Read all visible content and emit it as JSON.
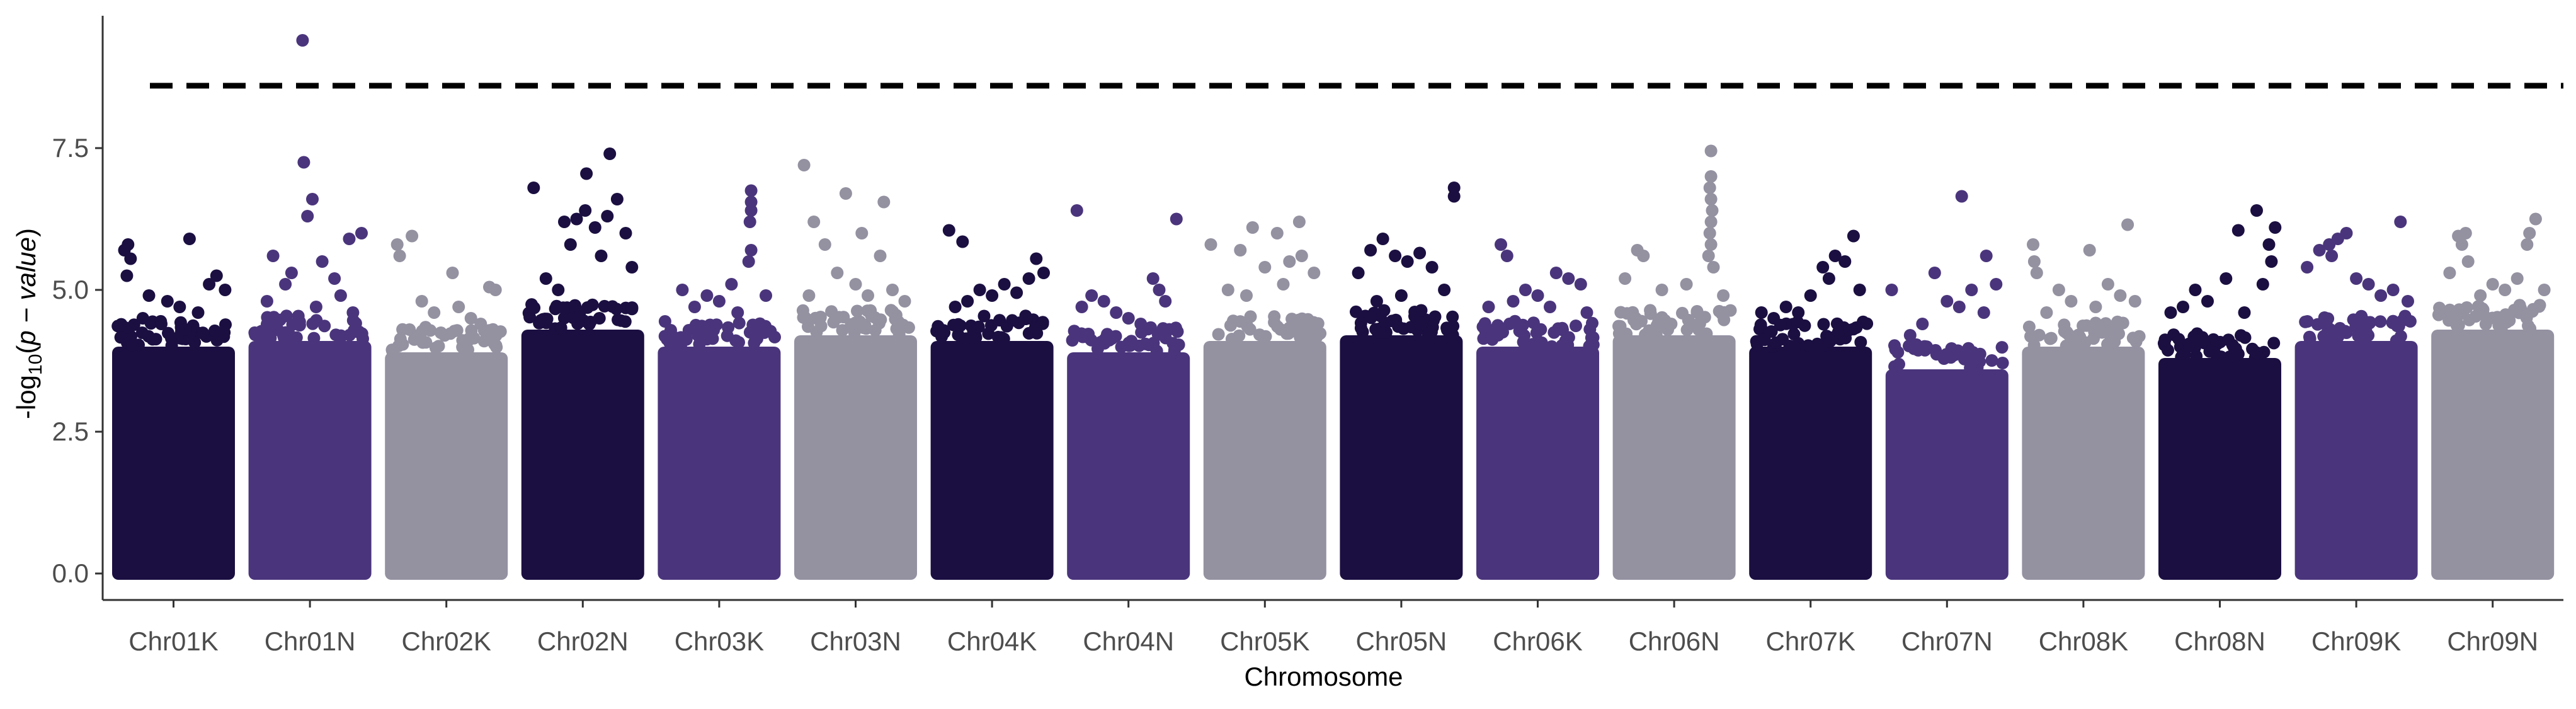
{
  "chart_data": {
    "type": "scatter",
    "subtype": "manhattan",
    "title": "",
    "xlabel": "Chromosome",
    "ylabel": "-log10(p - value)",
    "ylabel_parts": {
      "prefix": "-log",
      "subscript": "10",
      "open": "(",
      "italic": "p − value",
      "close": ")"
    },
    "ylim": [
      0,
      9.6
    ],
    "yticks": [
      0.0,
      2.5,
      5.0,
      7.5
    ],
    "ytick_labels": [
      "0.0",
      "2.5",
      "5.0",
      "7.5"
    ],
    "threshold": 8.6,
    "grid": false,
    "legend": "none",
    "colors": [
      "#1b0f41",
      "#4a357c",
      "#9491a1"
    ],
    "chromosomes": [
      {
        "name": "Chr01K",
        "color": "#1b0f41",
        "mass_top": 4.0,
        "top_points": [
          {
            "x": 0.13,
            "y": 5.8
          },
          {
            "x": 0.1,
            "y": 5.7
          },
          {
            "x": 0.15,
            "y": 5.55
          },
          {
            "x": 0.12,
            "y": 5.25
          },
          {
            "x": 0.63,
            "y": 5.9
          },
          {
            "x": 0.85,
            "y": 5.25
          },
          {
            "x": 0.79,
            "y": 5.1
          },
          {
            "x": 0.92,
            "y": 5.0
          },
          {
            "x": 0.3,
            "y": 4.9
          },
          {
            "x": 0.45,
            "y": 4.8
          },
          {
            "x": 0.55,
            "y": 4.7
          },
          {
            "x": 0.7,
            "y": 4.6
          },
          {
            "x": 0.25,
            "y": 4.5
          },
          {
            "x": 0.4,
            "y": 4.4
          },
          {
            "x": 0.6,
            "y": 4.3
          }
        ]
      },
      {
        "name": "Chr01N",
        "color": "#4a357c",
        "mass_top": 4.1,
        "top_points": [
          {
            "x": 0.44,
            "y": 9.4
          },
          {
            "x": 0.45,
            "y": 7.25
          },
          {
            "x": 0.52,
            "y": 6.6
          },
          {
            "x": 0.48,
            "y": 6.3
          },
          {
            "x": 0.92,
            "y": 6.0
          },
          {
            "x": 0.82,
            "y": 5.9
          },
          {
            "x": 0.2,
            "y": 5.6
          },
          {
            "x": 0.6,
            "y": 5.5
          },
          {
            "x": 0.35,
            "y": 5.3
          },
          {
            "x": 0.7,
            "y": 5.2
          },
          {
            "x": 0.3,
            "y": 5.1
          },
          {
            "x": 0.75,
            "y": 4.9
          },
          {
            "x": 0.15,
            "y": 4.8
          },
          {
            "x": 0.55,
            "y": 4.7
          },
          {
            "x": 0.85,
            "y": 4.6
          }
        ]
      },
      {
        "name": "Chr02K",
        "color": "#9491a1",
        "mass_top": 3.9,
        "top_points": [
          {
            "x": 0.22,
            "y": 5.95
          },
          {
            "x": 0.1,
            "y": 5.8
          },
          {
            "x": 0.12,
            "y": 5.6
          },
          {
            "x": 0.55,
            "y": 5.3
          },
          {
            "x": 0.85,
            "y": 5.05
          },
          {
            "x": 0.9,
            "y": 5.0
          },
          {
            "x": 0.3,
            "y": 4.8
          },
          {
            "x": 0.4,
            "y": 4.6
          },
          {
            "x": 0.6,
            "y": 4.7
          },
          {
            "x": 0.7,
            "y": 4.5
          },
          {
            "x": 0.78,
            "y": 4.4
          },
          {
            "x": 0.2,
            "y": 4.3
          }
        ]
      },
      {
        "name": "Chr02N",
        "color": "#1b0f41",
        "mass_top": 4.3,
        "top_points": [
          {
            "x": 0.1,
            "y": 6.8
          },
          {
            "x": 0.53,
            "y": 7.05
          },
          {
            "x": 0.72,
            "y": 7.4
          },
          {
            "x": 0.78,
            "y": 6.6
          },
          {
            "x": 0.7,
            "y": 6.3
          },
          {
            "x": 0.52,
            "y": 6.4
          },
          {
            "x": 0.35,
            "y": 6.2
          },
          {
            "x": 0.45,
            "y": 6.25
          },
          {
            "x": 0.6,
            "y": 6.1
          },
          {
            "x": 0.85,
            "y": 6.0
          },
          {
            "x": 0.4,
            "y": 5.8
          },
          {
            "x": 0.65,
            "y": 5.6
          },
          {
            "x": 0.9,
            "y": 5.4
          },
          {
            "x": 0.2,
            "y": 5.2
          },
          {
            "x": 0.3,
            "y": 5.0
          }
        ]
      },
      {
        "name": "Chr03K",
        "color": "#4a357c",
        "mass_top": 4.0,
        "top_points": [
          {
            "x": 0.76,
            "y": 6.75
          },
          {
            "x": 0.76,
            "y": 6.55
          },
          {
            "x": 0.76,
            "y": 6.4
          },
          {
            "x": 0.75,
            "y": 6.2
          },
          {
            "x": 0.76,
            "y": 5.7
          },
          {
            "x": 0.74,
            "y": 5.5
          },
          {
            "x": 0.6,
            "y": 5.1
          },
          {
            "x": 0.2,
            "y": 5.0
          },
          {
            "x": 0.4,
            "y": 4.9
          },
          {
            "x": 0.5,
            "y": 4.8
          },
          {
            "x": 0.3,
            "y": 4.7
          },
          {
            "x": 0.88,
            "y": 4.9
          },
          {
            "x": 0.65,
            "y": 4.6
          }
        ]
      },
      {
        "name": "Chr03N",
        "color": "#9491a1",
        "mass_top": 4.2,
        "top_points": [
          {
            "x": 0.08,
            "y": 7.2
          },
          {
            "x": 0.42,
            "y": 6.7
          },
          {
            "x": 0.73,
            "y": 6.55
          },
          {
            "x": 0.16,
            "y": 6.2
          },
          {
            "x": 0.55,
            "y": 6.0
          },
          {
            "x": 0.25,
            "y": 5.8
          },
          {
            "x": 0.7,
            "y": 5.6
          },
          {
            "x": 0.35,
            "y": 5.3
          },
          {
            "x": 0.5,
            "y": 5.1
          },
          {
            "x": 0.8,
            "y": 5.0
          },
          {
            "x": 0.6,
            "y": 4.9
          },
          {
            "x": 0.9,
            "y": 4.8
          },
          {
            "x": 0.12,
            "y": 4.9
          }
        ]
      },
      {
        "name": "Chr04K",
        "color": "#1b0f41",
        "mass_top": 4.1,
        "top_points": [
          {
            "x": 0.15,
            "y": 6.05
          },
          {
            "x": 0.26,
            "y": 5.85
          },
          {
            "x": 0.86,
            "y": 5.55
          },
          {
            "x": 0.4,
            "y": 5.0
          },
          {
            "x": 0.5,
            "y": 4.9
          },
          {
            "x": 0.6,
            "y": 5.1
          },
          {
            "x": 0.7,
            "y": 4.95
          },
          {
            "x": 0.8,
            "y": 5.2
          },
          {
            "x": 0.92,
            "y": 5.3
          },
          {
            "x": 0.3,
            "y": 4.8
          },
          {
            "x": 0.2,
            "y": 4.7
          }
        ]
      },
      {
        "name": "Chr04N",
        "color": "#4a357c",
        "mass_top": 3.9,
        "top_points": [
          {
            "x": 0.08,
            "y": 6.4
          },
          {
            "x": 0.89,
            "y": 6.25
          },
          {
            "x": 0.7,
            "y": 5.2
          },
          {
            "x": 0.2,
            "y": 4.9
          },
          {
            "x": 0.3,
            "y": 4.8
          },
          {
            "x": 0.75,
            "y": 5.0
          },
          {
            "x": 0.8,
            "y": 4.8
          },
          {
            "x": 0.5,
            "y": 4.5
          },
          {
            "x": 0.4,
            "y": 4.6
          },
          {
            "x": 0.6,
            "y": 4.4
          },
          {
            "x": 0.12,
            "y": 4.7
          }
        ]
      },
      {
        "name": "Chr05K",
        "color": "#9491a1",
        "mass_top": 4.1,
        "top_points": [
          {
            "x": 0.06,
            "y": 5.8
          },
          {
            "x": 0.78,
            "y": 6.2
          },
          {
            "x": 0.4,
            "y": 6.1
          },
          {
            "x": 0.6,
            "y": 6.0
          },
          {
            "x": 0.3,
            "y": 5.7
          },
          {
            "x": 0.7,
            "y": 5.5
          },
          {
            "x": 0.5,
            "y": 5.4
          },
          {
            "x": 0.8,
            "y": 5.6
          },
          {
            "x": 0.9,
            "y": 5.3
          },
          {
            "x": 0.2,
            "y": 5.0
          },
          {
            "x": 0.35,
            "y": 4.9
          },
          {
            "x": 0.65,
            "y": 5.1
          }
        ]
      },
      {
        "name": "Chr05N",
        "color": "#1b0f41",
        "mass_top": 4.2,
        "top_points": [
          {
            "x": 0.93,
            "y": 6.8
          },
          {
            "x": 0.93,
            "y": 6.65
          },
          {
            "x": 0.35,
            "y": 5.9
          },
          {
            "x": 0.25,
            "y": 5.7
          },
          {
            "x": 0.45,
            "y": 5.6
          },
          {
            "x": 0.65,
            "y": 5.65
          },
          {
            "x": 0.55,
            "y": 5.5
          },
          {
            "x": 0.75,
            "y": 5.4
          },
          {
            "x": 0.15,
            "y": 5.3
          },
          {
            "x": 0.85,
            "y": 5.0
          },
          {
            "x": 0.5,
            "y": 4.9
          },
          {
            "x": 0.3,
            "y": 4.8
          }
        ]
      },
      {
        "name": "Chr06K",
        "color": "#4a357c",
        "mass_top": 4.0,
        "top_points": [
          {
            "x": 0.2,
            "y": 5.8
          },
          {
            "x": 0.25,
            "y": 5.6
          },
          {
            "x": 0.65,
            "y": 5.3
          },
          {
            "x": 0.75,
            "y": 5.2
          },
          {
            "x": 0.85,
            "y": 5.1
          },
          {
            "x": 0.4,
            "y": 5.0
          },
          {
            "x": 0.5,
            "y": 4.9
          },
          {
            "x": 0.3,
            "y": 4.8
          },
          {
            "x": 0.6,
            "y": 4.7
          },
          {
            "x": 0.9,
            "y": 4.6
          },
          {
            "x": 0.1,
            "y": 4.7
          }
        ]
      },
      {
        "name": "Chr06N",
        "color": "#9491a1",
        "mass_top": 4.2,
        "top_points": [
          {
            "x": 0.8,
            "y": 7.45
          },
          {
            "x": 0.8,
            "y": 7.0
          },
          {
            "x": 0.79,
            "y": 6.8
          },
          {
            "x": 0.8,
            "y": 6.6
          },
          {
            "x": 0.81,
            "y": 6.4
          },
          {
            "x": 0.8,
            "y": 6.2
          },
          {
            "x": 0.79,
            "y": 6.0
          },
          {
            "x": 0.8,
            "y": 5.8
          },
          {
            "x": 0.78,
            "y": 5.6
          },
          {
            "x": 0.82,
            "y": 5.4
          },
          {
            "x": 0.2,
            "y": 5.7
          },
          {
            "x": 0.25,
            "y": 5.6
          },
          {
            "x": 0.1,
            "y": 5.2
          },
          {
            "x": 0.4,
            "y": 5.0
          },
          {
            "x": 0.6,
            "y": 5.1
          },
          {
            "x": 0.9,
            "y": 4.9
          }
        ]
      },
      {
        "name": "Chr07K",
        "color": "#1b0f41",
        "mass_top": 4.0,
        "top_points": [
          {
            "x": 0.85,
            "y": 5.95
          },
          {
            "x": 0.7,
            "y": 5.6
          },
          {
            "x": 0.78,
            "y": 5.5
          },
          {
            "x": 0.6,
            "y": 5.4
          },
          {
            "x": 0.65,
            "y": 5.2
          },
          {
            "x": 0.9,
            "y": 5.0
          },
          {
            "x": 0.5,
            "y": 4.9
          },
          {
            "x": 0.3,
            "y": 4.7
          },
          {
            "x": 0.4,
            "y": 4.6
          },
          {
            "x": 0.2,
            "y": 4.5
          },
          {
            "x": 0.1,
            "y": 4.6
          }
        ]
      },
      {
        "name": "Chr07N",
        "color": "#4a357c",
        "mass_top": 3.6,
        "top_points": [
          {
            "x": 0.62,
            "y": 6.65
          },
          {
            "x": 0.82,
            "y": 5.6
          },
          {
            "x": 0.4,
            "y": 5.3
          },
          {
            "x": 0.05,
            "y": 5.0
          },
          {
            "x": 0.7,
            "y": 5.0
          },
          {
            "x": 0.9,
            "y": 5.1
          },
          {
            "x": 0.5,
            "y": 4.8
          },
          {
            "x": 0.6,
            "y": 4.7
          },
          {
            "x": 0.3,
            "y": 4.4
          },
          {
            "x": 0.2,
            "y": 4.2
          },
          {
            "x": 0.8,
            "y": 4.6
          },
          {
            "x": 0.1,
            "y": 3.9
          }
        ]
      },
      {
        "name": "Chr08K",
        "color": "#9491a1",
        "mass_top": 4.0,
        "top_points": [
          {
            "x": 0.09,
            "y": 5.8
          },
          {
            "x": 0.86,
            "y": 6.15
          },
          {
            "x": 0.55,
            "y": 5.7
          },
          {
            "x": 0.1,
            "y": 5.5
          },
          {
            "x": 0.12,
            "y": 5.3
          },
          {
            "x": 0.3,
            "y": 5.0
          },
          {
            "x": 0.4,
            "y": 4.8
          },
          {
            "x": 0.7,
            "y": 5.1
          },
          {
            "x": 0.8,
            "y": 4.9
          },
          {
            "x": 0.6,
            "y": 4.7
          },
          {
            "x": 0.2,
            "y": 4.6
          },
          {
            "x": 0.92,
            "y": 4.8
          }
        ]
      },
      {
        "name": "Chr08N",
        "color": "#1b0f41",
        "mass_top": 3.8,
        "top_points": [
          {
            "x": 0.8,
            "y": 6.4
          },
          {
            "x": 0.65,
            "y": 6.05
          },
          {
            "x": 0.95,
            "y": 6.1
          },
          {
            "x": 0.9,
            "y": 5.8
          },
          {
            "x": 0.92,
            "y": 5.5
          },
          {
            "x": 0.55,
            "y": 5.2
          },
          {
            "x": 0.85,
            "y": 5.1
          },
          {
            "x": 0.3,
            "y": 5.0
          },
          {
            "x": 0.4,
            "y": 4.8
          },
          {
            "x": 0.2,
            "y": 4.7
          },
          {
            "x": 0.1,
            "y": 4.6
          },
          {
            "x": 0.7,
            "y": 4.6
          }
        ]
      },
      {
        "name": "Chr09K",
        "color": "#4a357c",
        "mass_top": 4.1,
        "top_points": [
          {
            "x": 0.86,
            "y": 6.2
          },
          {
            "x": 0.42,
            "y": 6.0
          },
          {
            "x": 0.35,
            "y": 5.9
          },
          {
            "x": 0.28,
            "y": 5.8
          },
          {
            "x": 0.2,
            "y": 5.7
          },
          {
            "x": 0.3,
            "y": 5.6
          },
          {
            "x": 0.1,
            "y": 5.4
          },
          {
            "x": 0.5,
            "y": 5.2
          },
          {
            "x": 0.6,
            "y": 5.1
          },
          {
            "x": 0.7,
            "y": 4.9
          },
          {
            "x": 0.8,
            "y": 5.0
          },
          {
            "x": 0.92,
            "y": 4.8
          }
        ]
      },
      {
        "name": "Chr09N",
        "color": "#9491a1",
        "mass_top": 4.3,
        "top_points": [
          {
            "x": 0.22,
            "y": 5.95
          },
          {
            "x": 0.28,
            "y": 6.0
          },
          {
            "x": 0.25,
            "y": 5.8
          },
          {
            "x": 0.85,
            "y": 6.25
          },
          {
            "x": 0.8,
            "y": 6.0
          },
          {
            "x": 0.78,
            "y": 5.8
          },
          {
            "x": 0.3,
            "y": 5.5
          },
          {
            "x": 0.15,
            "y": 5.3
          },
          {
            "x": 0.5,
            "y": 5.1
          },
          {
            "x": 0.6,
            "y": 5.0
          },
          {
            "x": 0.7,
            "y": 5.2
          },
          {
            "x": 0.4,
            "y": 4.9
          },
          {
            "x": 0.92,
            "y": 5.0
          }
        ]
      }
    ]
  }
}
